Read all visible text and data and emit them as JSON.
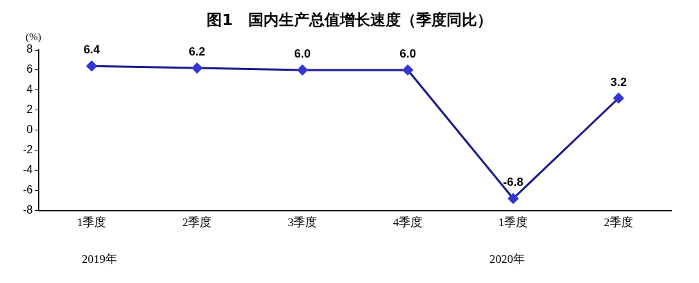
{
  "chart_data": {
    "type": "line",
    "title": "图1　国内生产总值增长速度（季度同比）",
    "ylabel": "(%)",
    "categories": [
      "1季度",
      "2季度",
      "3季度",
      "4季度",
      "1季度",
      "2季度"
    ],
    "series": [
      {
        "color": "#1c1c8e",
        "values": [
          6.4,
          6.2,
          6.0,
          6.0,
          -6.8,
          3.2
        ],
        "value_labels": [
          "6.4",
          "6.2",
          "6.0",
          "6.0",
          "-6.8",
          "3.2"
        ]
      }
    ],
    "ylim": [
      -8,
      8
    ],
    "yticks": [
      -8,
      -6,
      -4,
      -2,
      0,
      2,
      4,
      6,
      8
    ],
    "grid": false,
    "legend": false,
    "marker": "diamond",
    "line_style": "solid",
    "annotations": [
      "2019年",
      "2020年"
    ]
  }
}
